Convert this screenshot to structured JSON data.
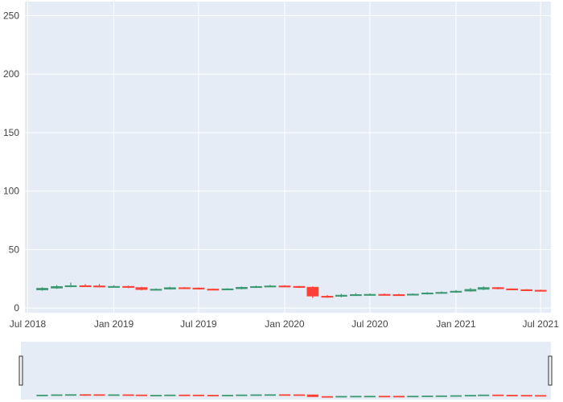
{
  "chart_data": {
    "type": "candlestick",
    "title": "",
    "xlabel": "",
    "ylabel": "",
    "ylim": [
      -4,
      262
    ],
    "xlim": [
      "2018-06-25",
      "2021-07-23"
    ],
    "x_ticks": [
      {
        "date": "2018-07-01",
        "label": "Jul 2018"
      },
      {
        "date": "2019-01-01",
        "label": "Jan 2019"
      },
      {
        "date": "2019-07-01",
        "label": "Jul 2019"
      },
      {
        "date": "2020-01-01",
        "label": "Jan 2020"
      },
      {
        "date": "2020-07-01",
        "label": "Jul 2020"
      },
      {
        "date": "2021-01-01",
        "label": "Jan 2021"
      },
      {
        "date": "2021-07-01",
        "label": "Jul 2021"
      }
    ],
    "y_ticks": [
      0,
      50,
      100,
      150,
      200,
      250
    ],
    "grid": true,
    "legend": "none",
    "rangeslider": true,
    "colors": {
      "increasing": "#3d9970",
      "decreasing": "#ff4136",
      "plot_bg": "#e5ecf6",
      "grid": "#ffffff",
      "tick_text": "#444444"
    },
    "series": [
      {
        "x": [
          "2018-08-01",
          "2018-09-01",
          "2018-10-01",
          "2018-11-01",
          "2018-12-01",
          "2019-01-01",
          "2019-02-01",
          "2019-03-01",
          "2019-04-01",
          "2019-05-01",
          "2019-06-01",
          "2019-07-01",
          "2019-08-01",
          "2019-09-01",
          "2019-10-01",
          "2019-11-01",
          "2019-12-01",
          "2020-01-01",
          "2020-02-01",
          "2020-03-01",
          "2020-04-01",
          "2020-05-01",
          "2020-06-01",
          "2020-07-01",
          "2020-08-01",
          "2020-09-01",
          "2020-10-01",
          "2020-11-01",
          "2020-12-01",
          "2021-01-01",
          "2021-02-01",
          "2021-03-01",
          "2021-04-01",
          "2021-05-01",
          "2021-06-01",
          "2021-07-01"
        ],
        "open": [
          15.5,
          17.0,
          18.5,
          19.2,
          19.0,
          18.5,
          18.6,
          17.6,
          15.8,
          16.2,
          17.5,
          17.2,
          16.3,
          15.8,
          16.5,
          17.8,
          18.5,
          19.0,
          18.6,
          17.9,
          10.2,
          10.0,
          11.1,
          11.6,
          11.8,
          11.6,
          11.2,
          12.0,
          13.0,
          13.5,
          14.5,
          16.0,
          17.6,
          16.5,
          15.8,
          15.3
        ],
        "close": [
          17.0,
          18.5,
          19.2,
          19.0,
          18.5,
          18.6,
          17.6,
          15.8,
          16.2,
          17.5,
          17.2,
          16.3,
          15.8,
          16.5,
          17.8,
          18.5,
          19.0,
          18.6,
          17.9,
          10.2,
          10.0,
          11.1,
          11.6,
          11.8,
          11.6,
          11.2,
          12.0,
          13.0,
          13.5,
          14.5,
          16.0,
          17.6,
          16.5,
          15.8,
          15.3,
          15.0
        ],
        "high": [
          17.8,
          19.6,
          21.8,
          20.5,
          20.6,
          19.6,
          19.2,
          18.2,
          16.8,
          18.2,
          18.0,
          17.6,
          16.6,
          17.0,
          18.4,
          19.2,
          19.8,
          19.6,
          19.0,
          18.6,
          11.2,
          12.2,
          12.8,
          12.6,
          12.4,
          12.2,
          12.6,
          13.6,
          14.2,
          15.4,
          17.2,
          18.6,
          18.0,
          16.8,
          16.2,
          15.8
        ],
        "low": [
          14.8,
          16.4,
          17.9,
          18.2,
          17.9,
          17.8,
          17.0,
          15.2,
          15.3,
          15.8,
          16.6,
          15.8,
          15.2,
          15.4,
          16.0,
          17.2,
          18.0,
          18.0,
          17.2,
          8.6,
          8.8,
          9.2,
          10.5,
          11.0,
          10.9,
          10.4,
          10.9,
          11.6,
          12.5,
          13.0,
          14.0,
          15.4,
          16.0,
          15.4,
          14.8,
          14.6
        ]
      }
    ]
  }
}
